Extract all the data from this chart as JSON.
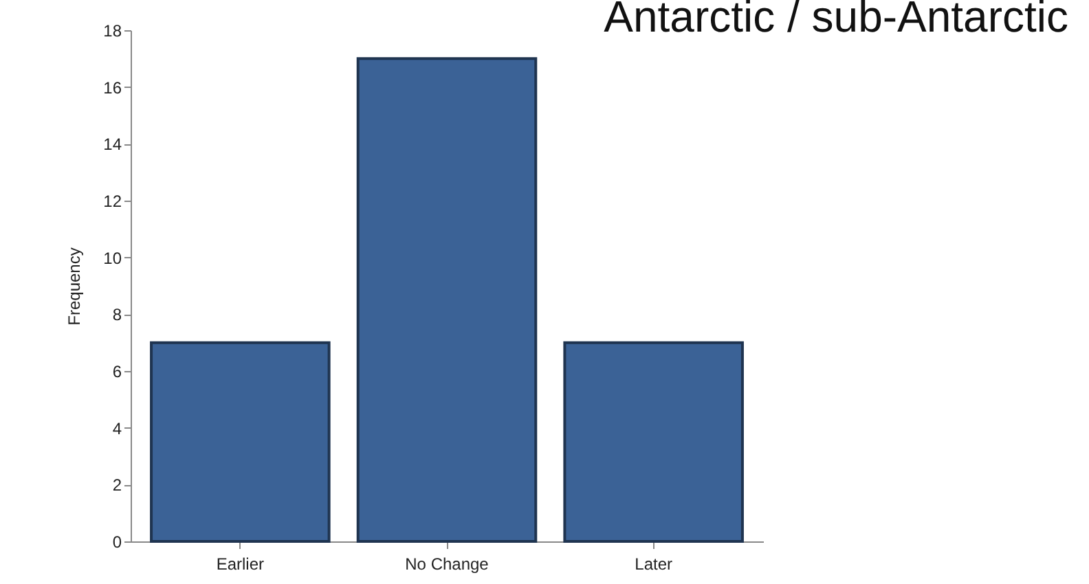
{
  "chart_data": {
    "type": "bar",
    "title": "Antarctic / sub-Antarctic",
    "ylabel": "Frequency",
    "categories": [
      "Earlier",
      "No Change",
      "Later"
    ],
    "values": [
      7,
      17,
      7
    ],
    "color": "#3b6296",
    "ylim": [
      0,
      18
    ],
    "yticks": [
      0,
      2,
      4,
      6,
      8,
      10,
      12,
      14,
      16,
      18
    ],
    "grid": false
  }
}
